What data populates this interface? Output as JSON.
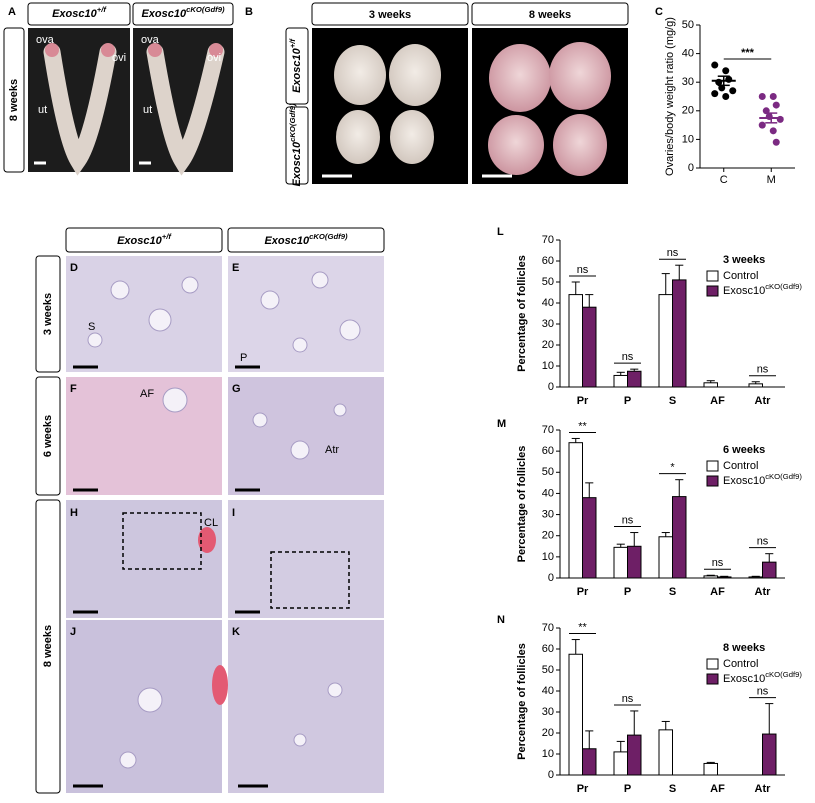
{
  "figure": {
    "panel_labels": [
      "A",
      "B",
      "C",
      "D",
      "E",
      "F",
      "G",
      "H",
      "I",
      "J",
      "K",
      "L",
      "M",
      "N"
    ],
    "genotypes": [
      {
        "name": "Exosc10",
        "sup": "+/f"
      },
      {
        "name": "Exosc10",
        "sup": "cKO(Gdf9)"
      }
    ],
    "ages": [
      "3 weeks",
      "6 weeks",
      "8 weeks"
    ],
    "tract_labels": [
      "ova",
      "ovi",
      "ut",
      "ova",
      "ovi",
      "ut"
    ],
    "histology_labels": [
      "S",
      "P",
      "AF",
      "Atr",
      "CL"
    ]
  },
  "chart_data": [
    {
      "type": "dotplot",
      "ylabel": "Ovaries/body weight ratio (mg/g)",
      "categories": [
        "C",
        "M"
      ],
      "colors": [
        "#000000",
        "#7b2a82"
      ],
      "points": [
        [
          36,
          34,
          31,
          30,
          28,
          27,
          26,
          25
        ],
        [
          25,
          25,
          22,
          20,
          18,
          17,
          15,
          13,
          9
        ]
      ],
      "means": [
        30.5,
        17.5
      ],
      "sems": [
        1.6,
        1.7
      ],
      "significance": "***",
      "ylim": [
        0,
        50
      ],
      "yticks": [
        0,
        10,
        20,
        30,
        40,
        50
      ]
    },
    {
      "type": "bar",
      "ylabel": "Percentage of follicles",
      "legend_title": "3 weeks",
      "categories": [
        "Pr",
        "P",
        "S",
        "AF",
        "Atr"
      ],
      "series": [
        {
          "name": "Control",
          "color": "#ffffff",
          "values": [
            44,
            5.5,
            44,
            2,
            1.5
          ],
          "errors": [
            6,
            1.5,
            10,
            1,
            1
          ]
        },
        {
          "name": "Exosc10",
          "name_sup": "cKO(Gdf9)",
          "color": "#6e1f66",
          "values": [
            38,
            7.5,
            51,
            0,
            0
          ],
          "errors": [
            6,
            1,
            7,
            0,
            0
          ]
        }
      ],
      "significance": [
        "ns",
        "ns",
        "ns",
        null,
        "ns"
      ],
      "ylim": [
        0,
        70
      ],
      "yticks": [
        0,
        10,
        20,
        30,
        40,
        50,
        60,
        70
      ]
    },
    {
      "type": "bar",
      "ylabel": "Percentage of follicles",
      "legend_title": "6 weeks",
      "categories": [
        "Pr",
        "P",
        "S",
        "AF",
        "Atr"
      ],
      "series": [
        {
          "name": "Control",
          "color": "#ffffff",
          "values": [
            64,
            14.5,
            19.5,
            1,
            0.5
          ],
          "errors": [
            2,
            1.5,
            2,
            0.3,
            0.3
          ]
        },
        {
          "name": "Exosc10",
          "name_sup": "cKO(Gdf9)",
          "color": "#6e1f66",
          "values": [
            38,
            15,
            38.5,
            0.5,
            7.5
          ],
          "errors": [
            7,
            6.5,
            8,
            0.3,
            4
          ]
        }
      ],
      "significance": [
        "**",
        "ns",
        "*",
        "ns",
        "ns"
      ],
      "ylim": [
        0,
        70
      ],
      "yticks": [
        0,
        10,
        20,
        30,
        40,
        50,
        60,
        70
      ]
    },
    {
      "type": "bar",
      "ylabel": "Percentage of follicles",
      "legend_title": "8 weeks",
      "categories": [
        "Pr",
        "P",
        "S",
        "AF",
        "Atr"
      ],
      "series": [
        {
          "name": "Control",
          "color": "#ffffff",
          "values": [
            57.5,
            11,
            21.5,
            5.5,
            0
          ],
          "errors": [
            7,
            5,
            4,
            0.5,
            0
          ]
        },
        {
          "name": "Exosc10",
          "name_sup": "cKO(Gdf9)",
          "color": "#6e1f66",
          "values": [
            12.5,
            19,
            0,
            0,
            19.5
          ],
          "errors": [
            8.5,
            11.5,
            0,
            0,
            14.5
          ]
        }
      ],
      "significance": [
        "**",
        "ns",
        null,
        null,
        "ns"
      ],
      "ylim": [
        0,
        70
      ],
      "yticks": [
        0,
        10,
        20,
        30,
        40,
        50,
        60,
        70
      ]
    }
  ]
}
